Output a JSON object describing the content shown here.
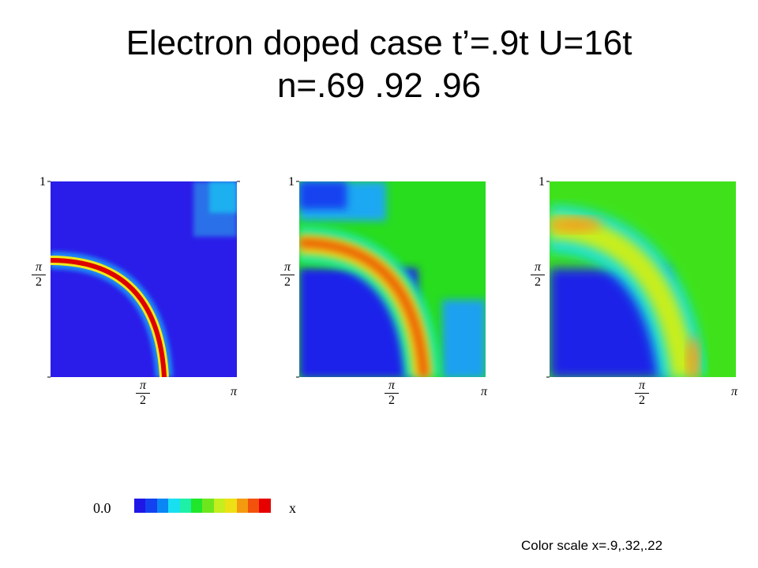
{
  "slide": {
    "title_line1": "Electron doped case t’=.9t U=16t",
    "title_line2": "n=.69 .92 .96",
    "footnote": "Color scale x=.9,.32,.22"
  },
  "plots": {
    "y_top_label": "1",
    "y_mid_num": "π",
    "y_mid_den": "2",
    "x_mid_num": "π",
    "x_mid_den": "2",
    "x_right_label": "π",
    "items": [
      {
        "name": "n=.69",
        "background": "#2a1de9",
        "ridge_color": "#dd0000",
        "ridge_width": 0.055,
        "corner_color": "#2c6fe8"
      },
      {
        "name": "n=.92",
        "background": "#28dc1e",
        "ridge_color": "#ee5a00",
        "ridge_width": 0.14,
        "corner_color": "#1240f0"
      },
      {
        "name": "n=.96",
        "background": "#3fe21a",
        "ridge_color": "#e8e21c",
        "ridge_width": 0.19,
        "corner_color": "#2a1de9"
      }
    ]
  },
  "colorscale": {
    "min_label": "0.0",
    "max_label": "x",
    "colors": [
      "#1f17e6",
      "#1342f0",
      "#0a86f5",
      "#18e0f0",
      "#1ef0a8",
      "#20e62c",
      "#6ee61e",
      "#c4ee1e",
      "#eee016",
      "#f49a10",
      "#f2520c",
      "#e60000"
    ]
  }
}
